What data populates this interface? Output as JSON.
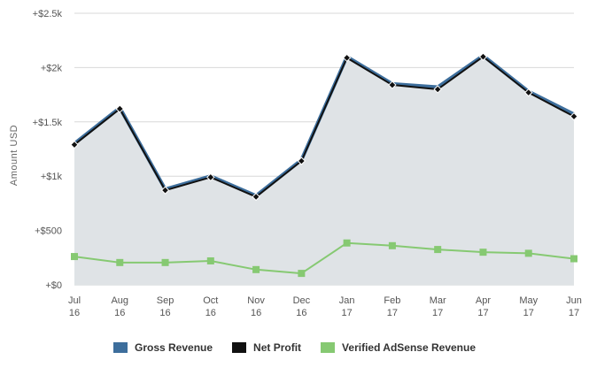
{
  "chart_data": {
    "type": "line",
    "ylabel": "Amount USD",
    "ylim": [
      0,
      2500
    ],
    "yticks": [
      {
        "value": 0,
        "label": "+$0"
      },
      {
        "value": 500,
        "label": "+$500"
      },
      {
        "value": 1000,
        "label": "+$1k"
      },
      {
        "value": 1500,
        "label": "+$1.5k"
      },
      {
        "value": 2000,
        "label": "+$2k"
      },
      {
        "value": 2500,
        "label": "+$2.5k"
      }
    ],
    "categories": [
      {
        "month": "Jul",
        "year": "16"
      },
      {
        "month": "Aug",
        "year": "16"
      },
      {
        "month": "Sep",
        "year": "16"
      },
      {
        "month": "Oct",
        "year": "16"
      },
      {
        "month": "Nov",
        "year": "16"
      },
      {
        "month": "Dec",
        "year": "16"
      },
      {
        "month": "Jan",
        "year": "17"
      },
      {
        "month": "Feb",
        "year": "17"
      },
      {
        "month": "Mar",
        "year": "17"
      },
      {
        "month": "Apr",
        "year": "17"
      },
      {
        "month": "May",
        "year": "17"
      },
      {
        "month": "Jun",
        "year": "17"
      }
    ],
    "series": [
      {
        "name": "Gross Revenue",
        "color": "#3d6e9c",
        "area": true,
        "values": [
          1300,
          1630,
          880,
          1000,
          820,
          1150,
          2100,
          1850,
          1820,
          2110,
          1780,
          1570
        ]
      },
      {
        "name": "Net Profit",
        "color": "#111111",
        "marker": "diamond",
        "values": [
          1290,
          1620,
          870,
          990,
          810,
          1140,
          2090,
          1840,
          1800,
          2100,
          1770,
          1550
        ]
      },
      {
        "name": "Verified AdSense Revenue",
        "color": "#86c972",
        "marker": "square",
        "values": [
          260,
          205,
          205,
          220,
          140,
          105,
          385,
          360,
          325,
          300,
          290,
          240
        ]
      }
    ],
    "grid": true,
    "legend_position": "bottom-center",
    "area_color": "#dfe3e6"
  }
}
